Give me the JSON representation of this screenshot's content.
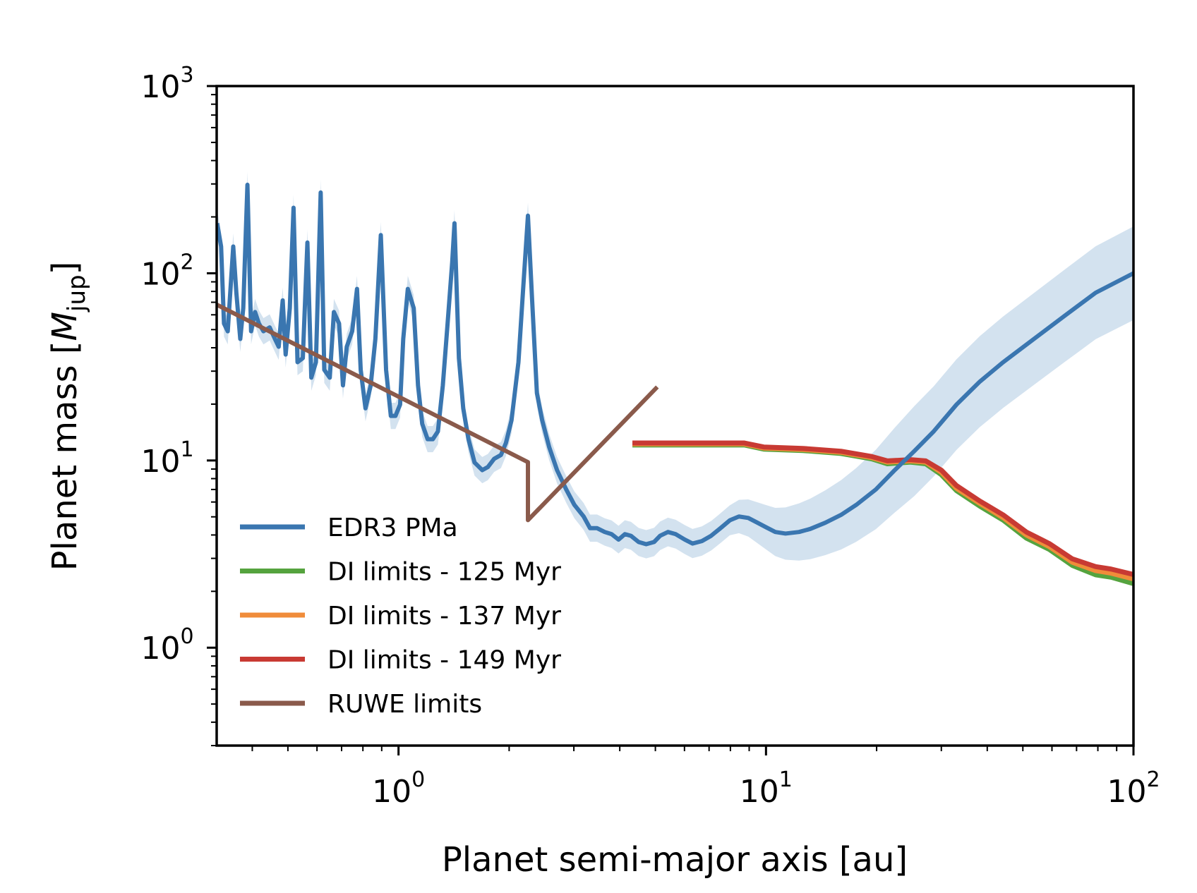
{
  "chart_data": {
    "type": "line",
    "xscale": "log",
    "yscale": "log",
    "xlabel": "Planet semi-major axis [au]",
    "ylabel_main": "Planet mass [",
    "ylabel_symbol": "M",
    "ylabel_sub": "jup",
    "ylabel_end": "]",
    "xlim": [
      0.32,
      100
    ],
    "ylim": [
      0.3,
      1000
    ],
    "x_ticks": [
      {
        "base": "10",
        "exp": "0",
        "value": 1
      },
      {
        "base": "10",
        "exp": "1",
        "value": 10
      },
      {
        "base": "10",
        "exp": "2",
        "value": 100
      }
    ],
    "y_ticks": [
      {
        "base": "10",
        "exp": "0",
        "value": 1
      },
      {
        "base": "10",
        "exp": "1",
        "value": 10
      },
      {
        "base": "10",
        "exp": "2",
        "value": 100
      },
      {
        "base": "10",
        "exp": "3",
        "value": 1000
      }
    ],
    "legend_position": "lower-left",
    "series": [
      {
        "name": "EDR3 PMa",
        "color": "#3a76b0",
        "band_color": "#d3e2ef",
        "x": [
          0.321,
          0.329,
          0.335,
          0.343,
          0.355,
          0.362,
          0.371,
          0.378,
          0.388,
          0.397,
          0.407,
          0.417,
          0.429,
          0.446,
          0.461,
          0.472,
          0.484,
          0.493,
          0.506,
          0.518,
          0.531,
          0.549,
          0.565,
          0.579,
          0.596,
          0.614,
          0.628,
          0.65,
          0.667,
          0.689,
          0.706,
          0.723,
          0.748,
          0.771,
          0.789,
          0.813,
          0.84,
          0.865,
          0.895,
          0.925,
          0.953,
          0.981,
          1.01,
          1.03,
          1.06,
          1.1,
          1.13,
          1.16,
          1.2,
          1.24,
          1.28,
          1.32,
          1.36,
          1.4,
          1.42,
          1.46,
          1.5,
          1.55,
          1.61,
          1.69,
          1.75,
          1.82,
          1.9,
          1.96,
          2.03,
          2.12,
          2.18,
          2.25,
          2.31,
          2.38,
          2.46,
          2.57,
          2.7,
          2.86,
          3.01,
          3.19,
          3.32,
          3.47,
          3.64,
          3.8,
          3.97,
          4.13,
          4.29,
          4.5,
          4.72,
          4.96,
          5.15,
          5.41,
          5.68,
          6.01,
          6.31,
          6.69,
          7.09,
          7.52,
          7.97,
          8.44,
          8.95,
          9.48,
          10.0,
          10.6,
          11.3,
          12.3,
          13.2,
          14.5,
          16.0,
          17.6,
          19.9,
          22.4,
          25.3,
          28.6,
          33.0,
          38.2,
          44.2,
          53.6,
          65.0,
          78.9,
          100
        ],
        "y": [
          185,
          139,
          53.9,
          49.0,
          139,
          78.7,
          44.6,
          65.1,
          297,
          49.0,
          62.1,
          53.9,
          49.0,
          51.4,
          44.6,
          40.5,
          71.6,
          36.8,
          65.1,
          224,
          33.5,
          35.2,
          146,
          27.7,
          33.5,
          270,
          30.5,
          27.7,
          62.1,
          53.9,
          25.2,
          40.5,
          49.0,
          82.5,
          30.5,
          19.0,
          25.2,
          44.6,
          160,
          30.5,
          17.3,
          17.3,
          19.9,
          44.6,
          82.5,
          65.1,
          25.2,
          15.7,
          13.0,
          13.0,
          14.3,
          25.2,
          53.9,
          115,
          185,
          35.2,
          19.0,
          13.0,
          9.76,
          8.88,
          9.22,
          10.2,
          10.7,
          12.4,
          16.4,
          33.5,
          78.7,
          203,
          71.6,
          22.9,
          16.4,
          11.8,
          8.88,
          7.0,
          5.79,
          5.02,
          4.35,
          4.35,
          4.15,
          4.04,
          3.78,
          4.04,
          3.96,
          3.67,
          3.57,
          3.67,
          3.96,
          4.15,
          4.04,
          3.78,
          3.6,
          3.71,
          3.96,
          4.35,
          4.79,
          5.02,
          4.93,
          4.65,
          4.4,
          4.15,
          4.07,
          4.15,
          4.31,
          4.65,
          5.12,
          5.79,
          7.0,
          8.88,
          11.2,
          14.3,
          19.9,
          26.4,
          33.5,
          44.6,
          59.3,
          78.7,
          100
        ],
        "uncertainty_dex_knots": [
          [
            0.32,
            0.07
          ],
          [
            2.5,
            0.07
          ],
          [
            8,
            0.08
          ],
          [
            12,
            0.15
          ],
          [
            25,
            0.24
          ],
          [
            100,
            0.25
          ]
        ]
      },
      {
        "name": "DI limits - 125 Myr",
        "color": "#55a33e",
        "x": [
          4.33,
          8.73,
          9.86,
          12.6,
          16.0,
          19.4,
          21.4,
          24.7,
          27.2,
          30.0,
          33.0,
          38.2,
          44.2,
          51.1,
          59.0,
          68.2,
          78.9,
          86.9,
          100
        ],
        "y": [
          12.1,
          12.1,
          11.5,
          11.3,
          10.9,
          10.2,
          9.6,
          9.8,
          9.6,
          8.4,
          6.9,
          5.7,
          4.8,
          3.85,
          3.35,
          2.75,
          2.45,
          2.38,
          2.2
        ]
      },
      {
        "name": "DI limits - 137 Myr",
        "color": "#f08c3a",
        "x": [
          4.33,
          8.73,
          9.86,
          12.6,
          16.0,
          19.4,
          21.4,
          24.7,
          27.2,
          30.0,
          33.0,
          38.2,
          44.2,
          51.1,
          59.0,
          68.2,
          78.9,
          86.9,
          100
        ],
        "y": [
          12.25,
          12.25,
          11.65,
          11.45,
          11.05,
          10.35,
          9.8,
          9.95,
          9.8,
          8.65,
          7.1,
          5.9,
          4.95,
          4.0,
          3.47,
          2.86,
          2.58,
          2.5,
          2.33
        ]
      },
      {
        "name": "DI limits - 149 Myr",
        "color": "#c83a33",
        "x": [
          4.33,
          8.73,
          9.86,
          12.6,
          16.0,
          19.4,
          21.4,
          24.7,
          27.2,
          30.0,
          33.0,
          38.2,
          44.2,
          51.1,
          59.0,
          68.2,
          78.9,
          86.9,
          100
        ],
        "y": [
          12.4,
          12.4,
          11.8,
          11.6,
          11.2,
          10.5,
          9.95,
          10.1,
          9.95,
          8.88,
          7.34,
          6.07,
          5.12,
          4.15,
          3.6,
          2.98,
          2.71,
          2.63,
          2.46
        ]
      },
      {
        "name": "RUWE limits",
        "color": "#8a5a4b",
        "x": [
          0.32,
          2.25,
          2.25,
          5.06
        ],
        "y": [
          68,
          9.8,
          4.8,
          24.7
        ]
      }
    ]
  }
}
